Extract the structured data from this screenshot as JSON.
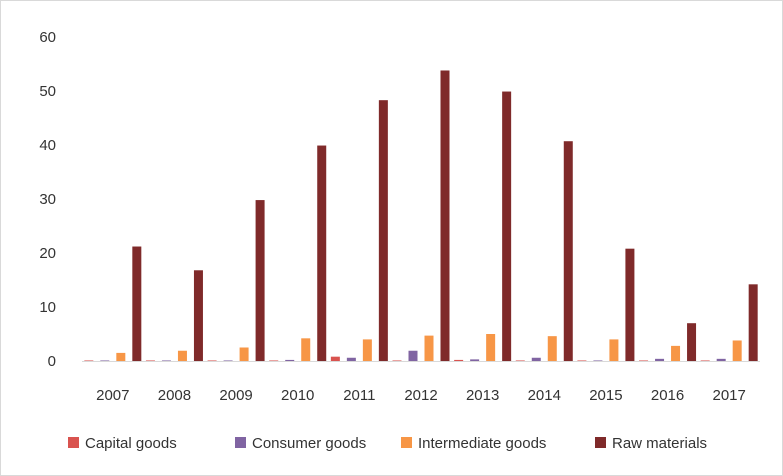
{
  "chart_data": {
    "type": "bar",
    "title": "",
    "xlabel": "",
    "ylabel": "",
    "categories": [
      "2007",
      "2008",
      "2009",
      "2010",
      "2011",
      "2012",
      "2013",
      "2014",
      "2015",
      "2016",
      "2017"
    ],
    "ylim": [
      0,
      60
    ],
    "yticks": [
      "0",
      "10",
      "20",
      "30",
      "40",
      "50",
      "60"
    ],
    "grid": false,
    "legend_position": "bottom",
    "series": [
      {
        "name": "Capital goods",
        "color": "#d9534f",
        "values": [
          0.1,
          0.1,
          0.1,
          0.1,
          0.8,
          0.1,
          0.2,
          0.1,
          0.1,
          0.1,
          0.1
        ]
      },
      {
        "name": "Consumer goods",
        "color": "#8064a2",
        "values": [
          0.1,
          0.1,
          0.1,
          0.2,
          0.6,
          1.9,
          0.3,
          0.6,
          0.1,
          0.4,
          0.4
        ]
      },
      {
        "name": "Intermediate goods",
        "color": "#f79646",
        "values": [
          1.5,
          1.9,
          2.5,
          4.2,
          4.0,
          4.7,
          5.0,
          4.6,
          4.0,
          2.8,
          3.8
        ]
      },
      {
        "name": "Raw materials",
        "color": "#7f2a2a",
        "values": [
          21.2,
          16.8,
          29.8,
          39.9,
          48.3,
          53.8,
          49.9,
          40.7,
          20.8,
          7.0,
          14.2
        ]
      }
    ]
  }
}
